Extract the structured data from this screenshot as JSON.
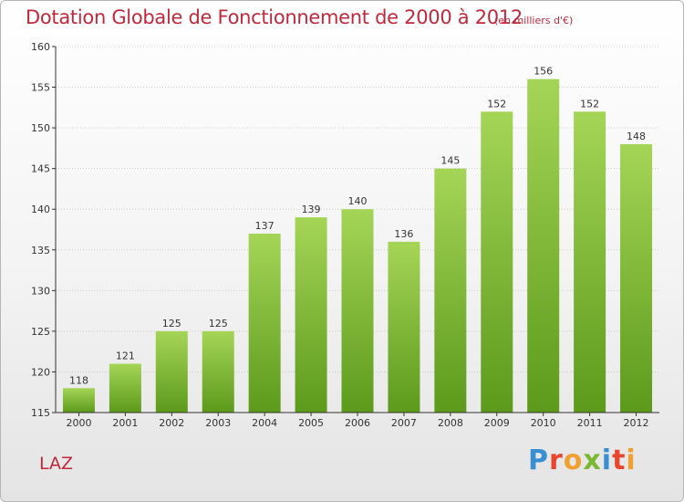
{
  "title": "Dotation Globale de Fonctionnement de 2000 à 2012",
  "subtitle": "(en milliers d'€)",
  "commune": "LAZ",
  "logo": {
    "text": "Proxiti",
    "letters": [
      {
        "char": "P",
        "color": "#3a8fd0"
      },
      {
        "char": "r",
        "color": "#e8452f"
      },
      {
        "char": "o",
        "color": "#f0a030"
      },
      {
        "char": "x",
        "color": "#7ab833"
      },
      {
        "char": "i",
        "color": "#3a8fd0"
      },
      {
        "char": "t",
        "color": "#e8452f"
      },
      {
        "char": "i",
        "color": "#f0a030"
      }
    ]
  },
  "colors": {
    "bar_light": "#a5d557",
    "bar_dark": "#5c9a1b",
    "text_accent": "#c0283c",
    "axis": "#333333",
    "grid": "#cccccc"
  },
  "chart_data": {
    "type": "bar",
    "categories": [
      "2000",
      "2001",
      "2002",
      "2003",
      "2004",
      "2005",
      "2006",
      "2007",
      "2008",
      "2009",
      "2010",
      "2011",
      "2012"
    ],
    "values": [
      118,
      121,
      125,
      125,
      137,
      139,
      140,
      136,
      145,
      152,
      156,
      152,
      148
    ],
    "ylim": [
      115,
      160
    ],
    "yticks": [
      115,
      120,
      125,
      130,
      135,
      140,
      145,
      150,
      155,
      160
    ],
    "grid": true,
    "title": "Dotation Globale de Fonctionnement de 2000 à 2012",
    "subtitle": "(en milliers d'€)"
  }
}
